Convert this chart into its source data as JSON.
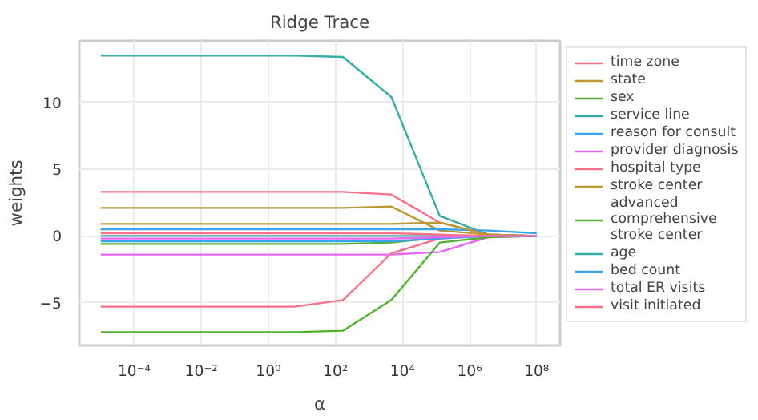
{
  "chart_data": {
    "type": "line",
    "title": "Ridge Trace",
    "xlabel": "α",
    "ylabel": "weights",
    "log": "x",
    "grid": true,
    "legend": "right",
    "marker": "none",
    "line_style": "solid",
    "x": [
      1e-05,
      0.000278,
      0.00774,
      0.215,
      5.99,
      167,
      4642,
      129155,
      3590000,
      100000000
    ],
    "xlim": [
      2.3e-06,
      500000000
    ],
    "ylim": [
      -8.2,
      14.6
    ],
    "xticks": [
      {
        "value": 0.0001,
        "label": "10⁻⁴"
      },
      {
        "value": 0.01,
        "label": "10⁻²"
      },
      {
        "value": 1,
        "label": "10⁰"
      },
      {
        "value": 100,
        "label": "10²"
      },
      {
        "value": 10000,
        "label": "10⁴"
      },
      {
        "value": 1000000,
        "label": "10⁶"
      },
      {
        "value": 100000000,
        "label": "10⁸"
      }
    ],
    "yticks": [
      -5,
      0,
      5,
      10
    ],
    "series": [
      {
        "name": "time zone",
        "color": "#f77189",
        "values": [
          3.3,
          3.3,
          3.3,
          3.3,
          3.3,
          3.3,
          3.1,
          1.0,
          0.1,
          0
        ]
      },
      {
        "name": "state",
        "color": "#bb9832",
        "values": [
          2.1,
          2.1,
          2.1,
          2.1,
          2.1,
          2.1,
          2.2,
          0.4,
          0.1,
          0
        ]
      },
      {
        "name": "sex",
        "color": "#50b131",
        "values": [
          -0.6,
          -0.6,
          -0.6,
          -0.6,
          -0.6,
          -0.6,
          -0.5,
          -0.1,
          0,
          0
        ]
      },
      {
        "name": "service line",
        "color": "#36ada4",
        "values": [
          13.5,
          13.5,
          13.5,
          13.5,
          13.5,
          13.4,
          10.4,
          1.5,
          0.1,
          0
        ]
      },
      {
        "name": "reason for consult",
        "color": "#3ba3ec",
        "values": [
          0.5,
          0.5,
          0.5,
          0.5,
          0.5,
          0.5,
          0.5,
          0.5,
          0.4,
          0.2
        ]
      },
      {
        "name": "provider diagnosis",
        "color": "#e866f4",
        "values": [
          -1.4,
          -1.4,
          -1.4,
          -1.4,
          -1.4,
          -1.4,
          -1.4,
          -1.2,
          -0.1,
          0
        ]
      },
      {
        "name": "hospital type",
        "color": "#f77189",
        "values": [
          -5.3,
          -5.3,
          -5.3,
          -5.3,
          -5.3,
          -4.8,
          -1.3,
          -0.2,
          0,
          0
        ]
      },
      {
        "name": "stroke center",
        "color": "#bb9832",
        "values": [
          0.9,
          0.9,
          0.9,
          0.9,
          0.9,
          0.9,
          0.9,
          1.0,
          0.1,
          0
        ]
      },
      {
        "name": "advanced\ncomprehensive\nstroke center",
        "color": "#50b131",
        "values": [
          -7.2,
          -7.2,
          -7.2,
          -7.2,
          -7.2,
          -7.1,
          -4.8,
          -0.5,
          -0.1,
          0
        ]
      },
      {
        "name": "age",
        "color": "#36ada4",
        "values": [
          0,
          0,
          0,
          0,
          0,
          0,
          0,
          0,
          0,
          0
        ]
      },
      {
        "name": "bed count",
        "color": "#3ba3ec",
        "values": [
          -0.4,
          -0.4,
          -0.4,
          -0.4,
          -0.4,
          -0.4,
          -0.4,
          -0.2,
          0,
          0
        ]
      },
      {
        "name": "total ER visits",
        "color": "#e866f4",
        "values": [
          -0.2,
          -0.2,
          -0.2,
          -0.2,
          -0.2,
          -0.2,
          -0.2,
          -0.1,
          0,
          0
        ]
      },
      {
        "name": "visit initiated",
        "color": "#f77189",
        "values": [
          0.2,
          0.2,
          0.2,
          0.2,
          0.2,
          0.2,
          0.2,
          0.1,
          0,
          0
        ]
      }
    ]
  }
}
